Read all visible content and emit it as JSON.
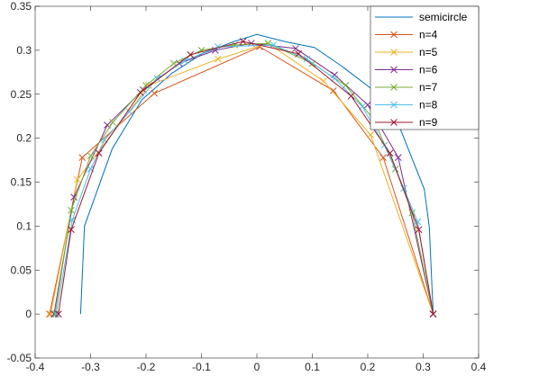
{
  "chart_data": {
    "type": "line",
    "title": "",
    "xlabel": "",
    "ylabel": "",
    "xlim": [
      -0.4,
      0.4
    ],
    "ylim": [
      -0.05,
      0.35
    ],
    "grid": false,
    "legend_position": "top-right",
    "x_ticks": [
      "-0.4",
      "-0.3",
      "-0.2",
      "-0.1",
      "0",
      "0.1",
      "0.2",
      "0.3",
      "0.4"
    ],
    "y_ticks": [
      "-0.05",
      "0",
      "0.05",
      "0.1",
      "0.15",
      "0.2",
      "0.25",
      "0.3",
      "0.35"
    ],
    "series": [
      {
        "name": "semicircle",
        "color": "#0072BD",
        "marker": "none",
        "x": [
          -0.318,
          -0.311,
          -0.261,
          -0.207,
          -0.153,
          -0.099,
          -0.041,
          0.0,
          0.05,
          0.104,
          0.155,
          0.207,
          0.259,
          0.302,
          0.311,
          0.318
        ],
        "y": [
          0.0,
          0.1,
          0.188,
          0.244,
          0.274,
          0.296,
          0.31,
          0.318,
          0.31,
          0.303,
          0.281,
          0.256,
          0.21,
          0.142,
          0.099,
          0.0
        ]
      },
      {
        "name": "n=4",
        "color": "#D95319",
        "marker": "x",
        "x": [
          -0.374,
          -0.315,
          -0.185,
          0.005,
          0.138,
          0.228,
          0.318
        ],
        "y": [
          0.0,
          0.178,
          0.251,
          0.304,
          0.254,
          0.178,
          0.0
        ]
      },
      {
        "name": "n=5",
        "color": "#EDB120",
        "marker": "x",
        "x": [
          -0.372,
          -0.324,
          -0.195,
          -0.07,
          0.02,
          0.12,
          0.205,
          0.318
        ],
        "y": [
          0.0,
          0.153,
          0.26,
          0.29,
          0.308,
          0.265,
          0.204,
          0.0
        ]
      },
      {
        "name": "n=6",
        "color": "#7E2F8E",
        "marker": "x",
        "x": [
          -0.366,
          -0.33,
          -0.27,
          -0.205,
          -0.14,
          -0.075,
          -0.01,
          0.07,
          0.14,
          0.2,
          0.255,
          0.318
        ],
        "y": [
          0.0,
          0.133,
          0.215,
          0.255,
          0.285,
          0.3,
          0.308,
          0.302,
          0.272,
          0.238,
          0.178,
          0.0
        ]
      },
      {
        "name": "n=7",
        "color": "#77AC30",
        "marker": "x",
        "x": [
          -0.364,
          -0.335,
          -0.3,
          -0.26,
          -0.2,
          -0.15,
          -0.1,
          -0.04,
          0.02,
          0.1,
          0.16,
          0.21,
          0.25,
          0.28,
          0.318
        ],
        "y": [
          0.0,
          0.118,
          0.18,
          0.218,
          0.26,
          0.285,
          0.3,
          0.306,
          0.308,
          0.285,
          0.26,
          0.222,
          0.165,
          0.115,
          0.0
        ]
      },
      {
        "name": "n=8",
        "color": "#4DBEEE",
        "marker": "x",
        "x": [
          -0.362,
          -0.333,
          -0.3,
          -0.275,
          -0.23,
          -0.18,
          -0.13,
          -0.07,
          0.03,
          0.09,
          0.14,
          0.19,
          0.23,
          0.265,
          0.29,
          0.318
        ],
        "y": [
          0.0,
          0.107,
          0.165,
          0.198,
          0.23,
          0.268,
          0.288,
          0.304,
          0.306,
          0.29,
          0.268,
          0.236,
          0.192,
          0.143,
          0.105,
          0.0
        ]
      },
      {
        "name": "n=9",
        "color": "#A2142F",
        "marker": "x",
        "x": [
          -0.358,
          -0.335,
          -0.285,
          -0.21,
          -0.12,
          -0.025,
          0.075,
          0.17,
          0.24,
          0.292,
          0.318
        ],
        "y": [
          0.0,
          0.096,
          0.183,
          0.252,
          0.295,
          0.31,
          0.296,
          0.248,
          0.183,
          0.096,
          0.0
        ]
      }
    ]
  }
}
